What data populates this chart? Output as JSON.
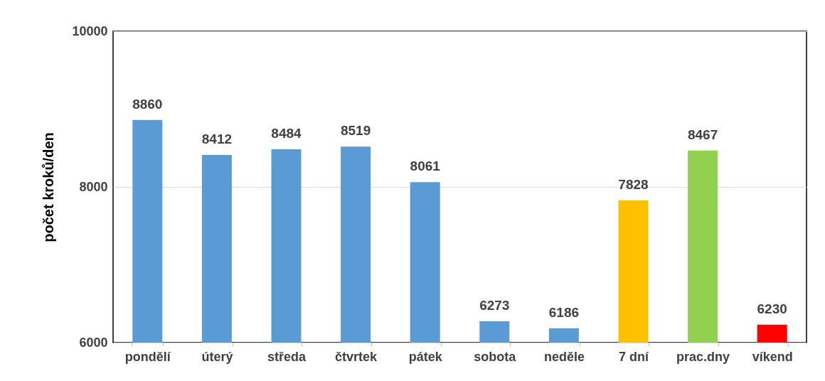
{
  "chart_data": {
    "type": "bar",
    "ylabel": "počet kroků/den",
    "categories": [
      "pondělí",
      "úterý",
      "středa",
      "čtvrtek",
      "pátek",
      "sobota",
      "neděle",
      "7 dní",
      "prac.dny",
      "víkend"
    ],
    "values": [
      8860,
      8412,
      8484,
      8519,
      8061,
      6273,
      6186,
      7828,
      8467,
      6230
    ],
    "colors": [
      "#5b9bd5",
      "#5b9bd5",
      "#5b9bd5",
      "#5b9bd5",
      "#5b9bd5",
      "#5b9bd5",
      "#5b9bd5",
      "#ffc000",
      "#92d050",
      "#ff0000"
    ],
    "ylim": [
      6000,
      10000
    ],
    "yticks": [
      6000,
      8000,
      10000
    ],
    "grid": "y",
    "data_labels": true
  }
}
